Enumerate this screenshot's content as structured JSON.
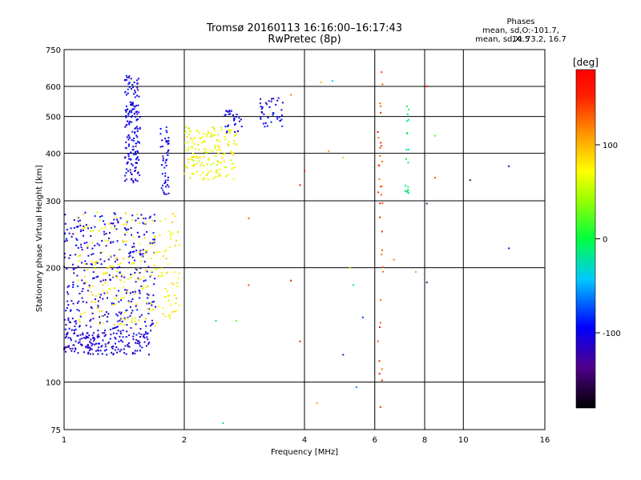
{
  "header": {
    "title_line1": "Tromsø 20160113 16:16:00–16:17:43",
    "title_line2": "RwPretec (8p)"
  },
  "phase_box": {
    "heading": "Phases",
    "line1": "mean, sd,O:-101.7, 14.5",
    "line2": "mean, sd,X:  73.2, 16.7"
  },
  "colorbar": {
    "unit_label": "[deg]",
    "tick_labels": [
      "100",
      "0",
      "-100"
    ],
    "tick_values": [
      100,
      0,
      -100
    ],
    "range": [
      -180,
      180
    ]
  },
  "chart_data": {
    "type": "scatter",
    "title": "Tromsø 20160113 16:16:00–16:17:43",
    "subtitle": "RwPretec (8p)",
    "xlabel": "Frequency [MHz]",
    "ylabel": "Stationary phase Virtual Height [km]",
    "xscale": "log",
    "yscale": "log",
    "xlim": [
      1,
      16
    ],
    "ylim": [
      75,
      750
    ],
    "xticks": [
      1,
      2,
      4,
      6,
      8,
      10,
      16
    ],
    "xtick_labels": [
      "1",
      "2",
      "4",
      "6",
      "8",
      "10",
      "16"
    ],
    "yticks": [
      75,
      100,
      200,
      300,
      400,
      500,
      600,
      750
    ],
    "ytick_labels": [
      "75",
      "100",
      "200",
      "300",
      "400",
      "500",
      "600",
      "750"
    ],
    "grid": true,
    "color_dimension": "phase [deg]",
    "clusters": [
      {
        "region": "E-layer low trace",
        "x": [
          1.0,
          1.65
        ],
        "y": [
          118,
          135
        ],
        "phase": -110,
        "count": 160
      },
      {
        "region": "lower scatter O",
        "x": [
          1.0,
          1.7
        ],
        "y": [
          130,
          280
        ],
        "phase": -105,
        "count": 380
      },
      {
        "region": "lower scatter X",
        "x": [
          1.08,
          1.95
        ],
        "y": [
          140,
          280
        ],
        "phase": 75,
        "count": 230
      },
      {
        "region": "F trace O spike",
        "x": [
          1.42,
          1.55
        ],
        "y": [
          330,
          640
        ],
        "phase": -100,
        "count": 170
      },
      {
        "region": "F trace O second spike",
        "x": [
          1.74,
          1.83
        ],
        "y": [
          310,
          470
        ],
        "phase": -100,
        "count": 50
      },
      {
        "region": "F trace X",
        "x": [
          2.0,
          2.7
        ],
        "y": [
          340,
          470
        ],
        "phase": 70,
        "count": 170
      },
      {
        "region": "F trace O high",
        "x": [
          2.5,
          2.8
        ],
        "y": [
          440,
          520
        ],
        "phase": -100,
        "count": 30
      },
      {
        "region": "F trace O cusp",
        "x": [
          3.1,
          3.55
        ],
        "y": [
          470,
          560
        ],
        "phase": -100,
        "count": 40
      },
      {
        "region": "column near 6.2 MHz",
        "x": [
          6.1,
          6.3
        ],
        "y": [
          100,
          660
        ],
        "phase": 140,
        "count": 35
      },
      {
        "region": "column near 7.2 MHz",
        "x": [
          7.15,
          7.3
        ],
        "y": [
          310,
          540
        ],
        "phase": -10,
        "count": 20
      }
    ],
    "points": [
      {
        "x": 2.5,
        "y": 78,
        "phase": -30
      },
      {
        "x": 4.3,
        "y": 88,
        "phase": 110
      },
      {
        "x": 5.4,
        "y": 97,
        "phase": -60
      },
      {
        "x": 6.2,
        "y": 86,
        "phase": 150
      },
      {
        "x": 3.9,
        "y": 330,
        "phase": 170
      },
      {
        "x": 4.0,
        "y": 360,
        "phase": 160
      },
      {
        "x": 8.1,
        "y": 600,
        "phase": 170
      },
      {
        "x": 8.1,
        "y": 295,
        "phase": -140
      },
      {
        "x": 8.1,
        "y": 183,
        "phase": -140
      },
      {
        "x": 10.4,
        "y": 340,
        "phase": -150
      },
      {
        "x": 13.0,
        "y": 370,
        "phase": -100
      },
      {
        "x": 13.0,
        "y": 225,
        "phase": -100
      },
      {
        "x": 6.7,
        "y": 210,
        "phase": 120
      },
      {
        "x": 7.6,
        "y": 195,
        "phase": 110
      },
      {
        "x": 2.9,
        "y": 270,
        "phase": 130
      },
      {
        "x": 3.7,
        "y": 185,
        "phase": 160
      },
      {
        "x": 3.9,
        "y": 128,
        "phase": 160
      },
      {
        "x": 4.4,
        "y": 615,
        "phase": 100
      },
      {
        "x": 4.7,
        "y": 620,
        "phase": -40
      },
      {
        "x": 4.6,
        "y": 405,
        "phase": 110
      },
      {
        "x": 5.0,
        "y": 390,
        "phase": 90
      },
      {
        "x": 5.2,
        "y": 200,
        "phase": 50
      },
      {
        "x": 5.3,
        "y": 180,
        "phase": -30
      },
      {
        "x": 5.0,
        "y": 118,
        "phase": -120
      },
      {
        "x": 5.6,
        "y": 148,
        "phase": -80
      },
      {
        "x": 2.7,
        "y": 145,
        "phase": 30
      },
      {
        "x": 2.4,
        "y": 145,
        "phase": -30
      },
      {
        "x": 2.9,
        "y": 180,
        "phase": 140
      },
      {
        "x": 3.7,
        "y": 570,
        "phase": 120
      },
      {
        "x": 8.5,
        "y": 345,
        "phase": 140
      },
      {
        "x": 8.5,
        "y": 445,
        "phase": 20
      }
    ]
  }
}
